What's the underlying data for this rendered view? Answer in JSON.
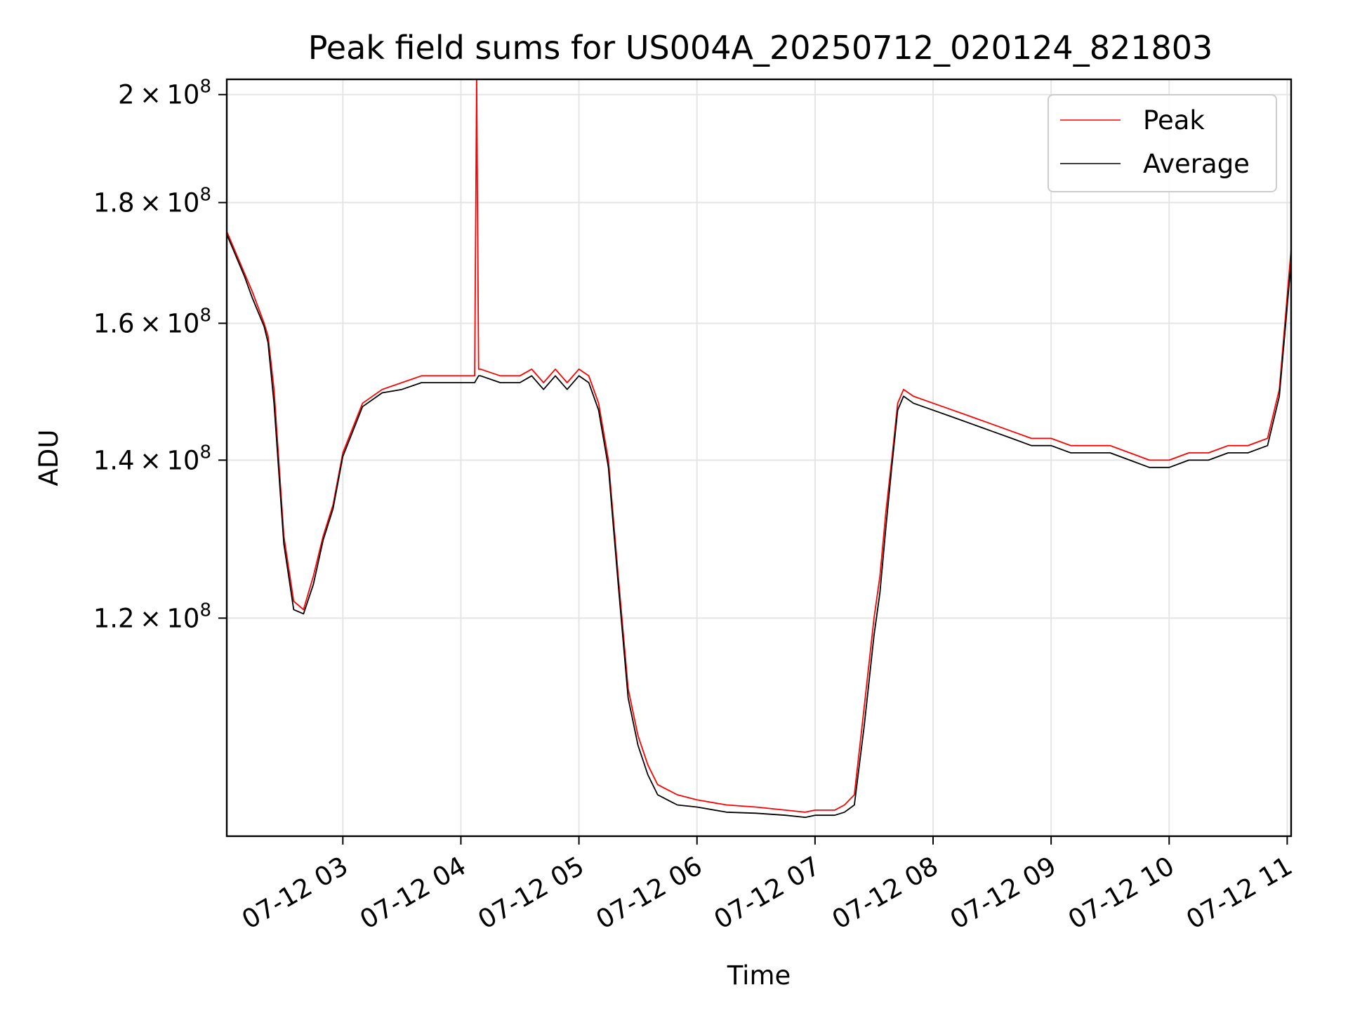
{
  "chart_data": {
    "type": "line",
    "title": "Peak field sums for US004A_20250712_020124_821803",
    "xlabel": "Time",
    "ylabel": "ADU",
    "y_scale": "log",
    "xlim": [
      "2025-07-12 02:01",
      "2025-07-12 11:02"
    ],
    "ylim": [
      97000000,
      203000000
    ],
    "grid": true,
    "legend_position": "upper right",
    "x_ticks": [
      {
        "time": "2025-07-12 03:00",
        "label": "07-12 03"
      },
      {
        "time": "2025-07-12 04:00",
        "label": "07-12 04"
      },
      {
        "time": "2025-07-12 05:00",
        "label": "07-12 05"
      },
      {
        "time": "2025-07-12 06:00",
        "label": "07-12 06"
      },
      {
        "time": "2025-07-12 07:00",
        "label": "07-12 07"
      },
      {
        "time": "2025-07-12 08:00",
        "label": "07-12 08"
      },
      {
        "time": "2025-07-12 09:00",
        "label": "07-12 09"
      },
      {
        "time": "2025-07-12 10:00",
        "label": "07-12 10"
      },
      {
        "time": "2025-07-12 11:00",
        "label": "07-12 11"
      }
    ],
    "y_ticks": [
      {
        "value": 120000000,
        "mantissa": "1.2",
        "exponent": "8"
      },
      {
        "value": 140000000,
        "mantissa": "1.4",
        "exponent": "8"
      },
      {
        "value": 160000000,
        "mantissa": "1.6",
        "exponent": "8"
      },
      {
        "value": 180000000,
        "mantissa": "1.8",
        "exponent": "8"
      },
      {
        "value": 200000000,
        "mantissa": "2",
        "exponent": "8"
      }
    ],
    "y_tick_base": "10",
    "series": [
      {
        "name": "Peak",
        "color": "#ff0000",
        "x": [
          "2025-07-12 02:01",
          "2025-07-12 02:10",
          "2025-07-12 02:14",
          "2025-07-12 02:20",
          "2025-07-12 02:22",
          "2025-07-12 02:25",
          "2025-07-12 02:30",
          "2025-07-12 02:35",
          "2025-07-12 02:40",
          "2025-07-12 02:45",
          "2025-07-12 02:50",
          "2025-07-12 02:55",
          "2025-07-12 03:00",
          "2025-07-12 03:10",
          "2025-07-12 03:20",
          "2025-07-12 03:30",
          "2025-07-12 03:40",
          "2025-07-12 03:50",
          "2025-07-12 04:00",
          "2025-07-12 04:07",
          "2025-07-12 04:08",
          "2025-07-12 04:09",
          "2025-07-12 04:10",
          "2025-07-12 04:20",
          "2025-07-12 04:30",
          "2025-07-12 04:36",
          "2025-07-12 04:42",
          "2025-07-12 04:48",
          "2025-07-12 04:54",
          "2025-07-12 05:00",
          "2025-07-12 05:05",
          "2025-07-12 05:10",
          "2025-07-12 05:15",
          "2025-07-12 05:20",
          "2025-07-12 05:25",
          "2025-07-12 05:30",
          "2025-07-12 05:35",
          "2025-07-12 05:40",
          "2025-07-12 05:45",
          "2025-07-12 05:50",
          "2025-07-12 06:00",
          "2025-07-12 06:15",
          "2025-07-12 06:30",
          "2025-07-12 06:45",
          "2025-07-12 06:55",
          "2025-07-12 07:00",
          "2025-07-12 07:10",
          "2025-07-12 07:15",
          "2025-07-12 07:20",
          "2025-07-12 07:25",
          "2025-07-12 07:30",
          "2025-07-12 07:33",
          "2025-07-12 07:36",
          "2025-07-12 07:39",
          "2025-07-12 07:42",
          "2025-07-12 07:45",
          "2025-07-12 07:50",
          "2025-07-12 08:00",
          "2025-07-12 08:10",
          "2025-07-12 08:20",
          "2025-07-12 08:30",
          "2025-07-12 08:40",
          "2025-07-12 08:50",
          "2025-07-12 09:00",
          "2025-07-12 09:10",
          "2025-07-12 09:20",
          "2025-07-12 09:30",
          "2025-07-12 09:40",
          "2025-07-12 09:50",
          "2025-07-12 10:00",
          "2025-07-12 10:10",
          "2025-07-12 10:20",
          "2025-07-12 10:30",
          "2025-07-12 10:40",
          "2025-07-12 10:50",
          "2025-07-12 10:56",
          "2025-07-12 11:02"
        ],
        "y": [
          175000000,
          168000000,
          165000000,
          160000000,
          158000000,
          150000000,
          130000000,
          122000000,
          121000000,
          125000000,
          130000000,
          134000000,
          141000000,
          148000000,
          150000000,
          151000000,
          152000000,
          152000000,
          152000000,
          152000000,
          203000000,
          153000000,
          153000000,
          152000000,
          152000000,
          153000000,
          151000000,
          153000000,
          151000000,
          153000000,
          152000000,
          148000000,
          140000000,
          125000000,
          112000000,
          107000000,
          104000000,
          102000000,
          101500000,
          101000000,
          100500000,
          100000000,
          99800000,
          99500000,
          99300000,
          99500000,
          99500000,
          100000000,
          101000000,
          110000000,
          120000000,
          125000000,
          133000000,
          140000000,
          148000000,
          150000000,
          149000000,
          148000000,
          147000000,
          146000000,
          145000000,
          144000000,
          143000000,
          143000000,
          142000000,
          142000000,
          142000000,
          141000000,
          140000000,
          140000000,
          141000000,
          141000000,
          142000000,
          142000000,
          143000000,
          150000000,
          172000000
        ]
      },
      {
        "name": "Average",
        "color": "#000000",
        "x": [
          "2025-07-12 02:01",
          "2025-07-12 02:10",
          "2025-07-12 02:14",
          "2025-07-12 02:20",
          "2025-07-12 02:22",
          "2025-07-12 02:25",
          "2025-07-12 02:30",
          "2025-07-12 02:35",
          "2025-07-12 02:40",
          "2025-07-12 02:45",
          "2025-07-12 02:50",
          "2025-07-12 02:55",
          "2025-07-12 03:00",
          "2025-07-12 03:10",
          "2025-07-12 03:20",
          "2025-07-12 03:30",
          "2025-07-12 03:40",
          "2025-07-12 03:50",
          "2025-07-12 04:00",
          "2025-07-12 04:07",
          "2025-07-12 04:08",
          "2025-07-12 04:09",
          "2025-07-12 04:10",
          "2025-07-12 04:20",
          "2025-07-12 04:30",
          "2025-07-12 04:36",
          "2025-07-12 04:42",
          "2025-07-12 04:48",
          "2025-07-12 04:54",
          "2025-07-12 05:00",
          "2025-07-12 05:05",
          "2025-07-12 05:10",
          "2025-07-12 05:15",
          "2025-07-12 05:20",
          "2025-07-12 05:25",
          "2025-07-12 05:30",
          "2025-07-12 05:35",
          "2025-07-12 05:40",
          "2025-07-12 05:45",
          "2025-07-12 05:50",
          "2025-07-12 06:00",
          "2025-07-12 06:15",
          "2025-07-12 06:30",
          "2025-07-12 06:45",
          "2025-07-12 06:55",
          "2025-07-12 07:00",
          "2025-07-12 07:10",
          "2025-07-12 07:15",
          "2025-07-12 07:20",
          "2025-07-12 07:25",
          "2025-07-12 07:30",
          "2025-07-12 07:33",
          "2025-07-12 07:36",
          "2025-07-12 07:39",
          "2025-07-12 07:42",
          "2025-07-12 07:45",
          "2025-07-12 07:50",
          "2025-07-12 08:00",
          "2025-07-12 08:10",
          "2025-07-12 08:20",
          "2025-07-12 08:30",
          "2025-07-12 08:40",
          "2025-07-12 08:50",
          "2025-07-12 09:00",
          "2025-07-12 09:10",
          "2025-07-12 09:20",
          "2025-07-12 09:30",
          "2025-07-12 09:40",
          "2025-07-12 09:50",
          "2025-07-12 10:00",
          "2025-07-12 10:10",
          "2025-07-12 10:20",
          "2025-07-12 10:30",
          "2025-07-12 10:40",
          "2025-07-12 10:50",
          "2025-07-12 10:56",
          "2025-07-12 11:02"
        ],
        "y": [
          174500000,
          167500000,
          164000000,
          159500000,
          157000000,
          148000000,
          129000000,
          121000000,
          120500000,
          124000000,
          129500000,
          133500000,
          140500000,
          147500000,
          149500000,
          150000000,
          151000000,
          151000000,
          151000000,
          151000000,
          151500000,
          152000000,
          152000000,
          151000000,
          151000000,
          152000000,
          150000000,
          152000000,
          150000000,
          152000000,
          151000000,
          147000000,
          139000000,
          124000000,
          111000000,
          106000000,
          103000000,
          101000000,
          100500000,
          100000000,
          99800000,
          99300000,
          99200000,
          99000000,
          98800000,
          99000000,
          99000000,
          99300000,
          100000000,
          108000000,
          118000000,
          123000000,
          131000000,
          139000000,
          147000000,
          149000000,
          148000000,
          147000000,
          146000000,
          145000000,
          144000000,
          143000000,
          142000000,
          142000000,
          141000000,
          141000000,
          141000000,
          140000000,
          139000000,
          139000000,
          140000000,
          140000000,
          141000000,
          141000000,
          142000000,
          149000000,
          170000000
        ]
      }
    ]
  }
}
